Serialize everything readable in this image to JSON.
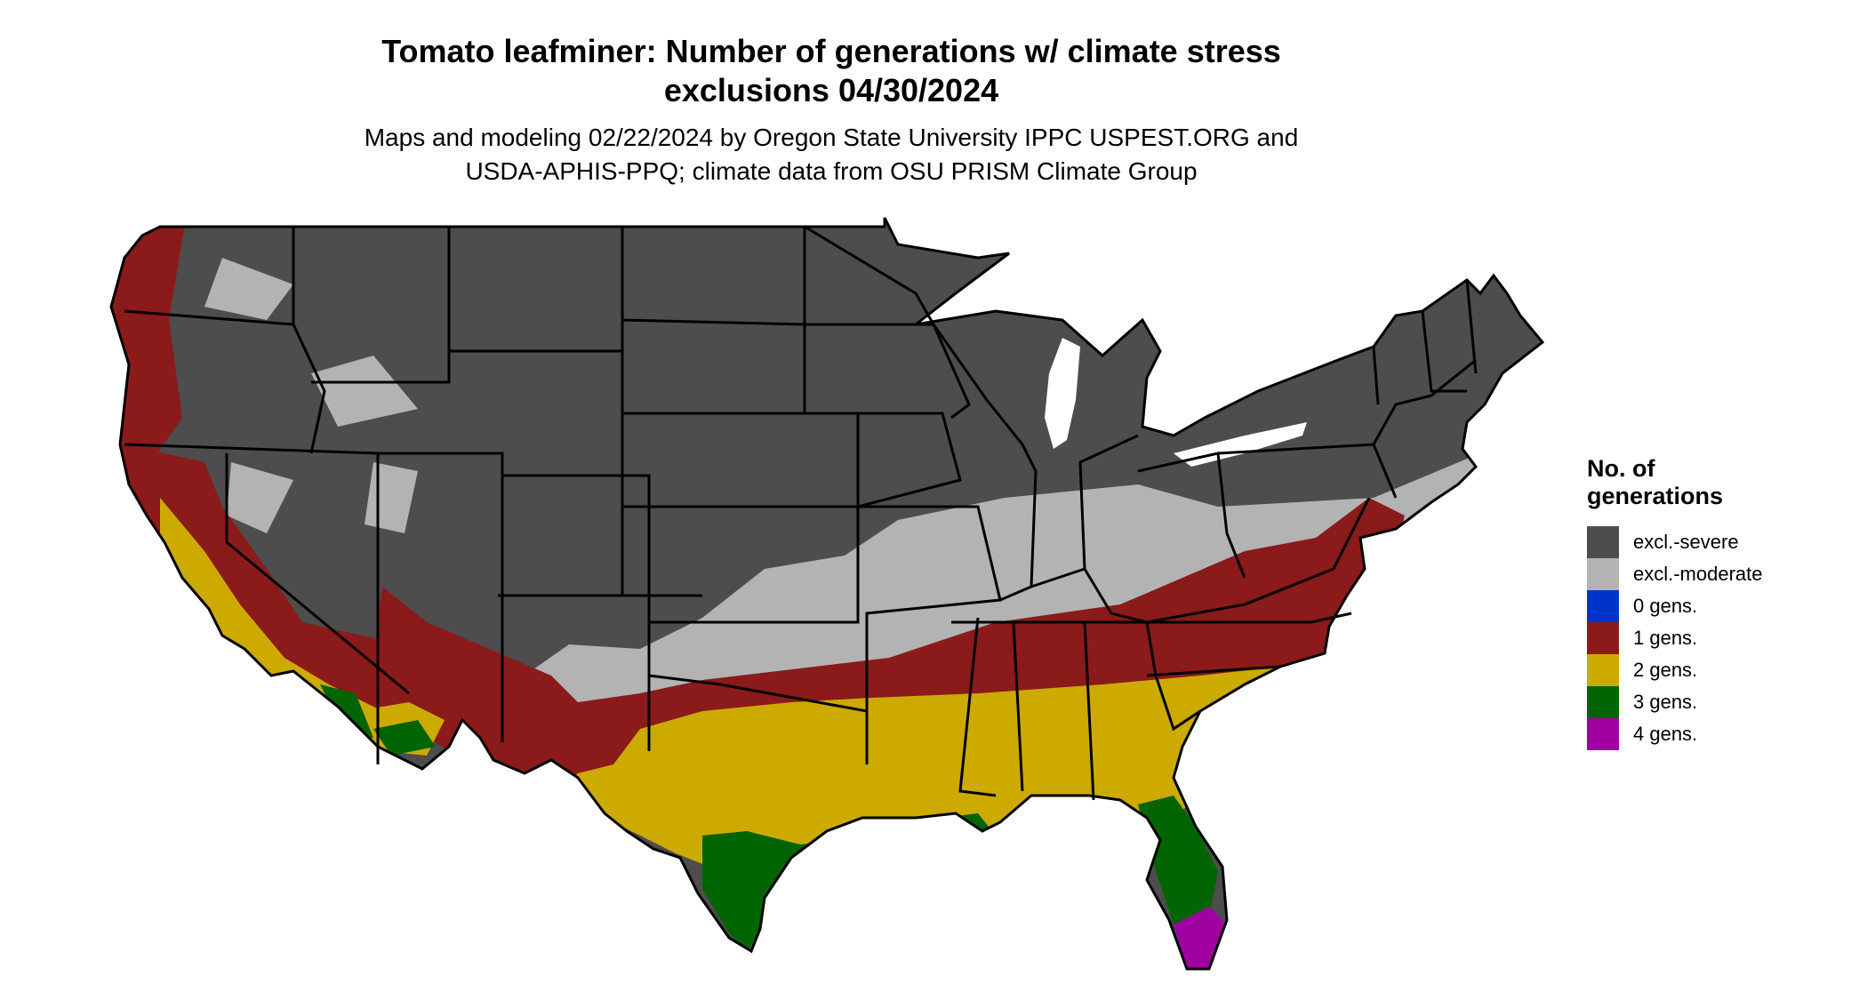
{
  "title": {
    "line1": "Tomato leafminer: Number of generations w/ climate stress",
    "line2": "exclusions 04/30/2024"
  },
  "subtitle": {
    "line1": "Maps and modeling 02/22/2024 by Oregon State University IPPC USPEST.ORG and",
    "line2": "USDA-APHIS-PPQ; climate data from OSU PRISM Climate Group"
  },
  "legend": {
    "title_line1": "No. of",
    "title_line2": "generations",
    "items": [
      {
        "label": "excl.-severe",
        "color": "#4d4d4d"
      },
      {
        "label": "excl.-moderate",
        "color": "#b3b3b3"
      },
      {
        "label": "0 gens.",
        "color": "#0033cc"
      },
      {
        "label": "1 gens.",
        "color": "#8b1a1a"
      },
      {
        "label": "2 gens.",
        "color": "#ccaa00"
      },
      {
        "label": "3 gens.",
        "color": "#006400"
      },
      {
        "label": "4 gens.",
        "color": "#a000a0"
      }
    ]
  },
  "map_colors": {
    "severe": "#4d4d4d",
    "moderate": "#b3b3b3",
    "one": "#8b1a1a",
    "two": "#ccaa00",
    "three": "#006400",
    "four": "#a000a0",
    "border": "#000000"
  }
}
